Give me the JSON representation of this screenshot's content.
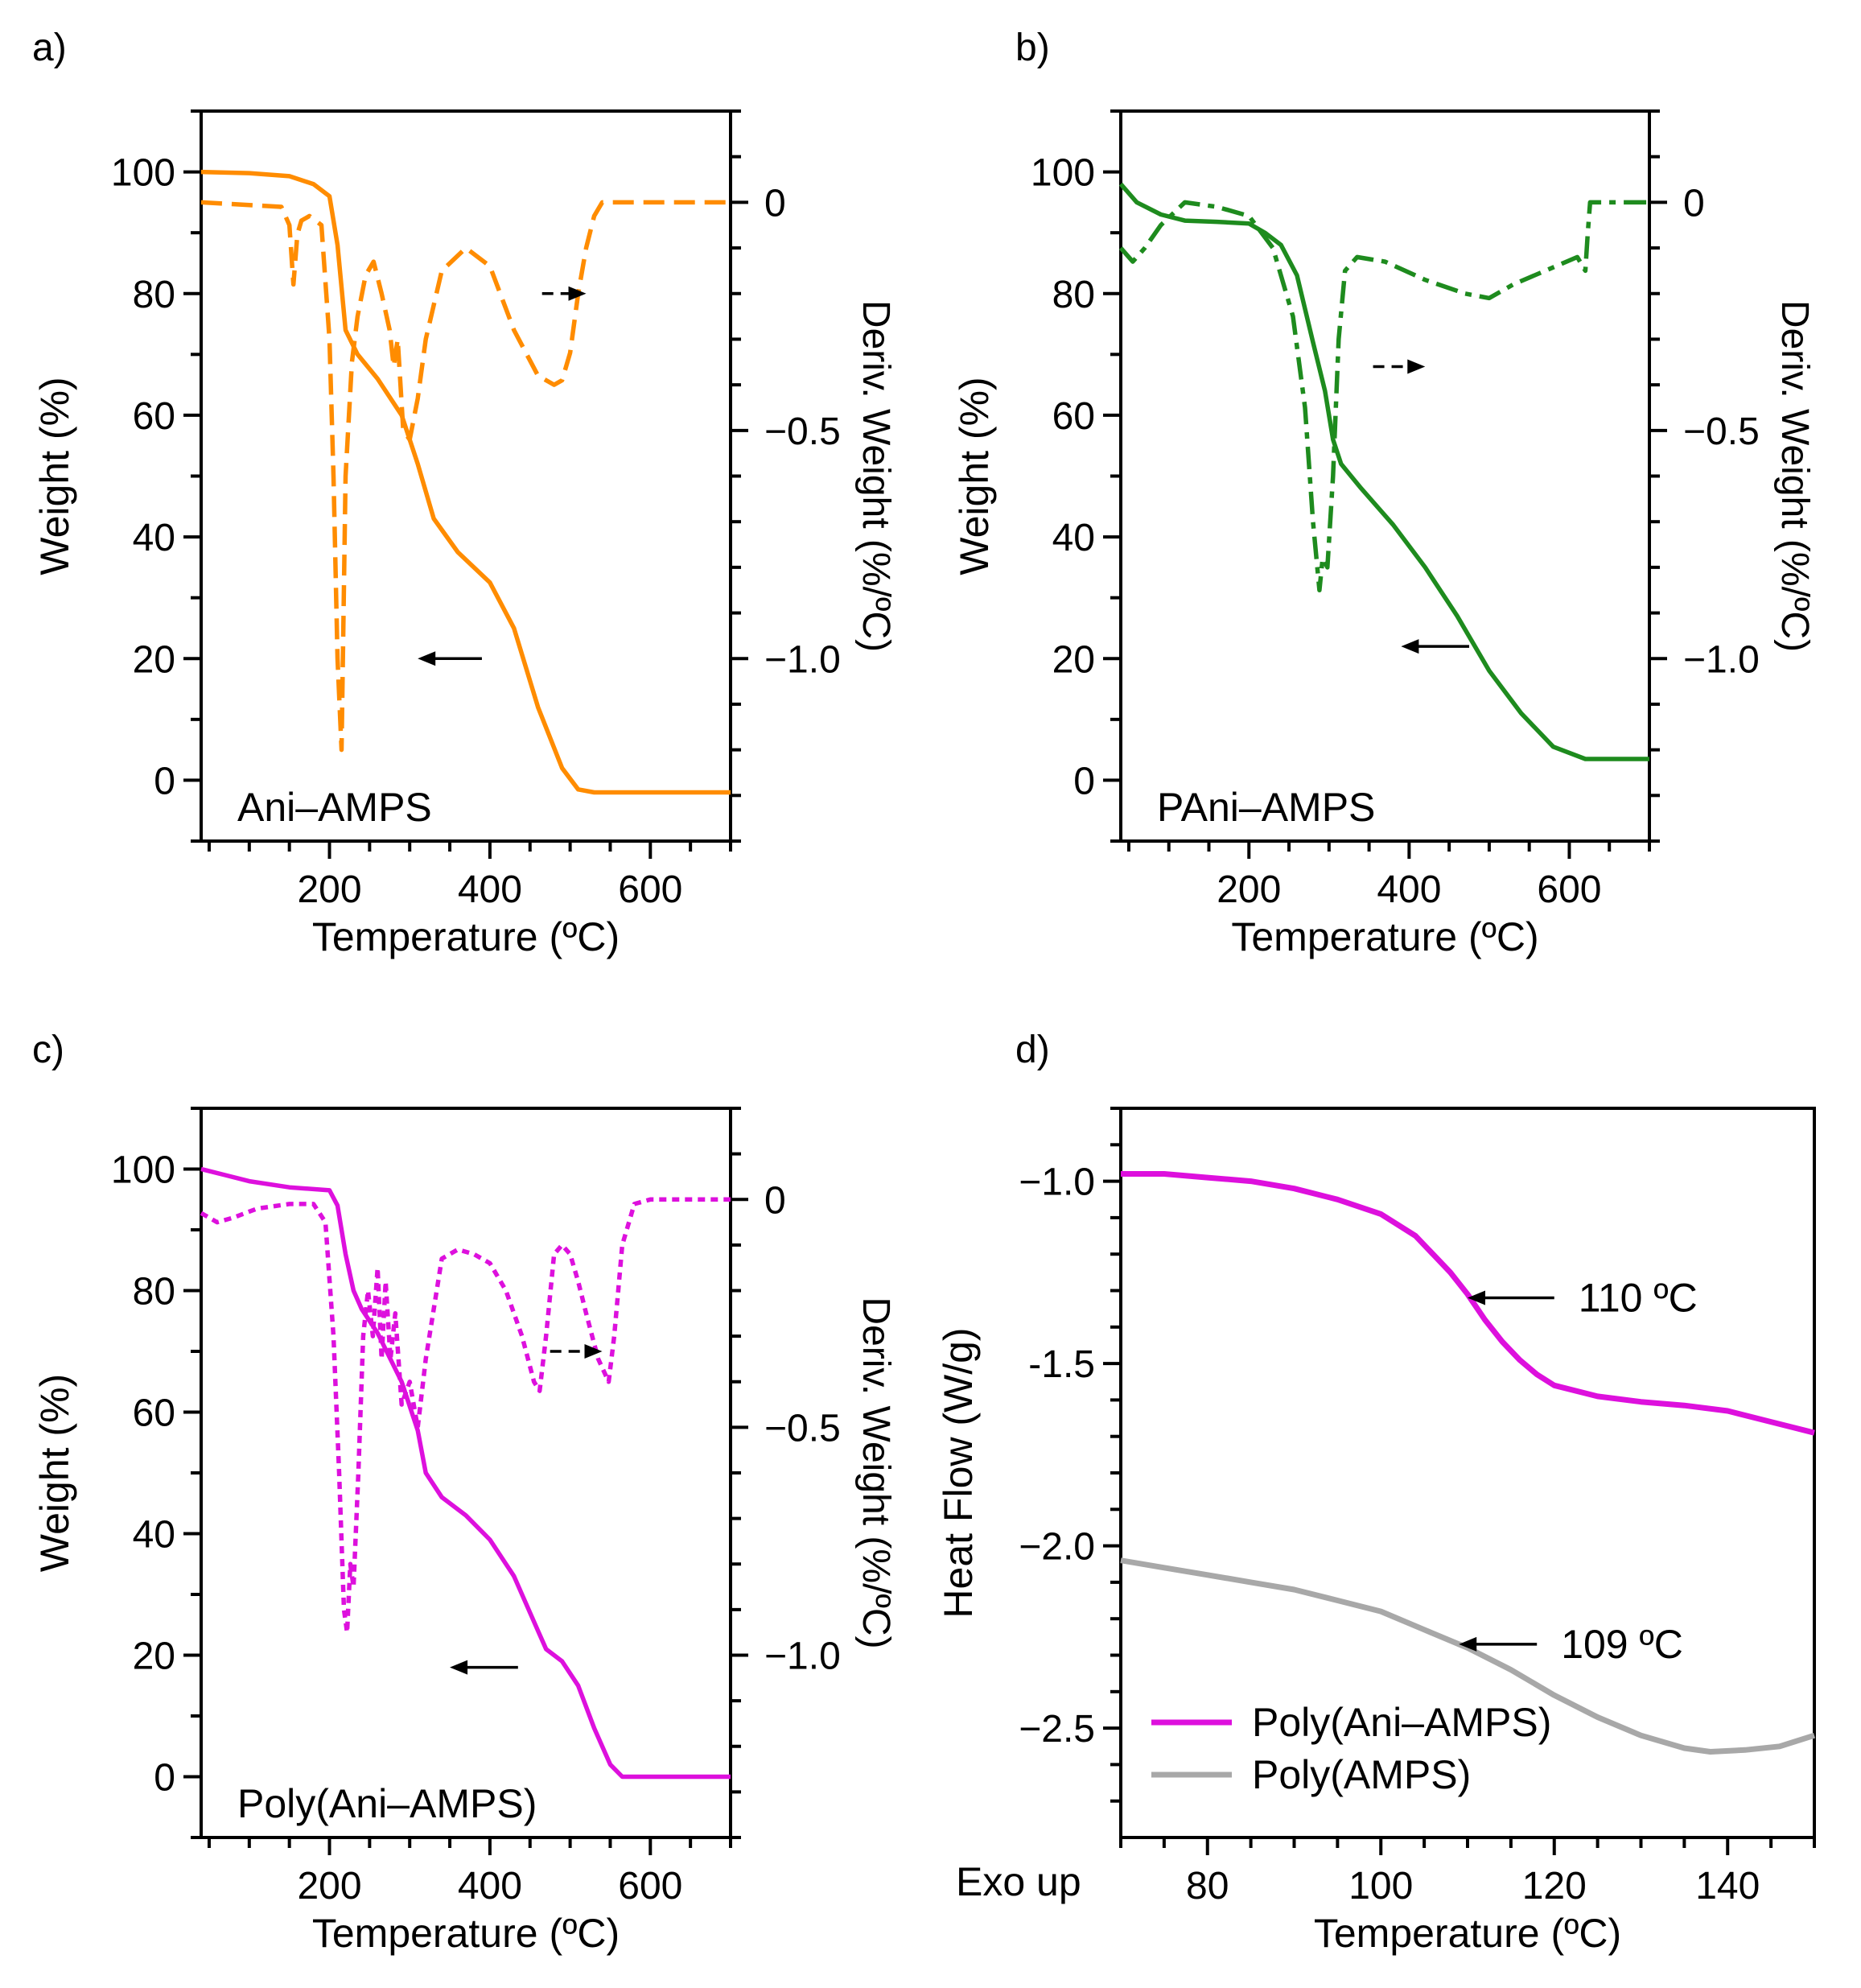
{
  "figure": {
    "panels": [
      "a)",
      "b)",
      "c)",
      "d)"
    ]
  },
  "chart_data": [
    {
      "panel": "a)",
      "type": "line",
      "color": "#FF8C00",
      "xlabel": "Temperature (ºC)",
      "ylabel": "Weight (%)",
      "y2label": "Deriv. Weight (%/ºC)",
      "xlim": [
        40,
        700
      ],
      "ylim": [
        -10,
        110
      ],
      "y2lim": [
        -1.4,
        0.2
      ],
      "xticks": [
        200,
        400,
        600
      ],
      "xtick_labels": [
        "200",
        "400",
        "600"
      ],
      "yticks": [
        0,
        20,
        40,
        60,
        80,
        100
      ],
      "ytick_labels": [
        "0",
        "20",
        "40",
        "60",
        "80",
        "100"
      ],
      "y2ticks": [
        0,
        -0.5,
        -1.0
      ],
      "y2tick_labels": [
        "0",
        "−0.5",
        "−1.0"
      ],
      "sample_label": "Ani–AMPS",
      "series": [
        {
          "name": "Weight",
          "axis": "left",
          "style": "solid",
          "x": [
            40,
            100,
            150,
            180,
            200,
            210,
            220,
            235,
            260,
            290,
            310,
            330,
            360,
            400,
            430,
            460,
            490,
            510,
            530,
            560,
            600,
            700
          ],
          "y": [
            100,
            99.8,
            99.3,
            98,
            96,
            88,
            74,
            70,
            66,
            60,
            52,
            43,
            37.5,
            32.5,
            25,
            12,
            2,
            -1.5,
            -2,
            -2,
            -2,
            -2
          ]
        },
        {
          "name": "Deriv. Weight",
          "axis": "right",
          "style": "dashed",
          "x": [
            40,
            140,
            150,
            155,
            160,
            165,
            175,
            190,
            200,
            205,
            210,
            215,
            220,
            228,
            235,
            245,
            255,
            265,
            275,
            280,
            285,
            292,
            300,
            310,
            320,
            340,
            370,
            400,
            430,
            460,
            480,
            490,
            500,
            510,
            520,
            530,
            540,
            600,
            700
          ],
          "y": [
            0,
            -0.01,
            -0.05,
            -0.18,
            -0.07,
            -0.04,
            -0.03,
            -0.05,
            -0.3,
            -0.6,
            -1.0,
            -1.2,
            -0.6,
            -0.35,
            -0.25,
            -0.16,
            -0.13,
            -0.2,
            -0.28,
            -0.36,
            -0.3,
            -0.5,
            -0.52,
            -0.43,
            -0.3,
            -0.15,
            -0.1,
            -0.14,
            -0.28,
            -0.38,
            -0.4,
            -0.39,
            -0.33,
            -0.2,
            -0.1,
            -0.03,
            0,
            0,
            0
          ]
        }
      ],
      "arrows": [
        {
          "from": [
            390,
            20
          ],
          "to": [
            310,
            20
          ],
          "style": "solid"
        },
        {
          "from": [
            465,
            80
          ],
          "to": [
            520,
            80
          ],
          "style": "dashed"
        }
      ]
    },
    {
      "panel": "b)",
      "type": "line",
      "color": "#1E8B1E",
      "xlabel": "Temperature (ºC)",
      "ylabel": "Weight (%)",
      "y2label": "Deriv. Weight (%/ºC)",
      "xlim": [
        40,
        700
      ],
      "ylim": [
        -10,
        110
      ],
      "y2lim": [
        -1.4,
        0.2
      ],
      "xticks": [
        200,
        400,
        600
      ],
      "xtick_labels": [
        "200",
        "400",
        "600"
      ],
      "yticks": [
        0,
        20,
        40,
        60,
        80,
        100
      ],
      "ytick_labels": [
        "0",
        "20",
        "40",
        "60",
        "80",
        "100"
      ],
      "y2ticks": [
        0,
        -0.5,
        -1.0
      ],
      "y2tick_labels": [
        "0",
        "−0.5",
        "−1.0"
      ],
      "sample_label": "PAni–AMPS",
      "series": [
        {
          "name": "Weight",
          "axis": "left",
          "style": "solid",
          "x": [
            40,
            60,
            90,
            120,
            160,
            200,
            220,
            240,
            260,
            280,
            295,
            305,
            315,
            340,
            380,
            420,
            460,
            500,
            540,
            580,
            620,
            625,
            700
          ],
          "y": [
            98,
            95,
            93,
            92,
            91.8,
            91.5,
            90,
            88,
            83,
            72,
            64,
            56,
            52,
            48,
            42,
            35,
            27,
            18,
            11,
            5.5,
            3.5,
            3.5,
            3.5
          ]
        },
        {
          "name": "Deriv. Weight",
          "axis": "right",
          "style": "dash-dot",
          "x": [
            40,
            55,
            70,
            90,
            120,
            160,
            200,
            230,
            255,
            270,
            280,
            288,
            292,
            298,
            305,
            312,
            320,
            335,
            370,
            420,
            470,
            500,
            530,
            570,
            610,
            620,
            623,
            626,
            700
          ],
          "y": [
            -0.1,
            -0.13,
            -0.1,
            -0.05,
            0,
            -0.01,
            -0.03,
            -0.1,
            -0.25,
            -0.45,
            -0.7,
            -0.85,
            -0.78,
            -0.8,
            -0.6,
            -0.3,
            -0.15,
            -0.12,
            -0.13,
            -0.17,
            -0.2,
            -0.21,
            -0.18,
            -0.15,
            -0.12,
            -0.15,
            -0.07,
            0,
            0
          ]
        }
      ],
      "arrows": [
        {
          "from": [
            475,
            22
          ],
          "to": [
            390,
            22
          ],
          "style": "solid"
        },
        {
          "from": [
            355,
            68
          ],
          "to": [
            420,
            68
          ],
          "style": "dashed"
        }
      ]
    },
    {
      "panel": "c)",
      "type": "line",
      "color": "#DD10DD",
      "xlabel": "Temperature (ºC)",
      "ylabel": "Weight (%)",
      "y2label": "Deriv. Weight (%/ºC)",
      "xlim": [
        40,
        700
      ],
      "ylim": [
        -10,
        110
      ],
      "y2lim": [
        -1.4,
        0.2
      ],
      "xticks": [
        200,
        400,
        600
      ],
      "xtick_labels": [
        "200",
        "400",
        "600"
      ],
      "yticks": [
        0,
        20,
        40,
        60,
        80,
        100
      ],
      "ytick_labels": [
        "0",
        "20",
        "40",
        "60",
        "80",
        "100"
      ],
      "y2ticks": [
        0,
        -0.5,
        -1.0
      ],
      "y2tick_labels": [
        "0",
        "−0.5",
        "−1.0"
      ],
      "sample_label": "Poly(Ani–AMPS)",
      "series": [
        {
          "name": "Weight",
          "axis": "left",
          "style": "solid",
          "x": [
            40,
            70,
            100,
            150,
            200,
            210,
            220,
            230,
            240,
            260,
            290,
            310,
            320,
            340,
            370,
            400,
            430,
            460,
            470,
            490,
            510,
            530,
            550,
            565,
            600,
            700
          ],
          "y": [
            100,
            99,
            98,
            97,
            96.5,
            94,
            86,
            80,
            77,
            73,
            65,
            57,
            50,
            46,
            43,
            39,
            33,
            24,
            21,
            19,
            15,
            8,
            2,
            0,
            0,
            0
          ]
        },
        {
          "name": "Deriv. Weight",
          "axis": "right",
          "style": "dotted",
          "x": [
            40,
            60,
            80,
            110,
            150,
            180,
            195,
            205,
            212,
            218,
            222,
            226,
            230,
            236,
            242,
            248,
            254,
            260,
            265,
            270,
            276,
            282,
            290,
            300,
            310,
            320,
            340,
            360,
            380,
            400,
            420,
            440,
            455,
            462,
            470,
            480,
            490,
            500,
            510,
            520,
            535,
            548,
            555,
            565,
            580,
            600,
            700
          ],
          "y": [
            -0.03,
            -0.05,
            -0.04,
            -0.02,
            -0.01,
            -0.01,
            -0.05,
            -0.3,
            -0.6,
            -0.9,
            -0.95,
            -0.8,
            -0.85,
            -0.6,
            -0.3,
            -0.2,
            -0.3,
            -0.15,
            -0.35,
            -0.18,
            -0.35,
            -0.25,
            -0.45,
            -0.4,
            -0.5,
            -0.35,
            -0.13,
            -0.11,
            -0.12,
            -0.14,
            -0.2,
            -0.3,
            -0.4,
            -0.42,
            -0.3,
            -0.12,
            -0.1,
            -0.12,
            -0.18,
            -0.25,
            -0.35,
            -0.4,
            -0.3,
            -0.1,
            -0.01,
            0,
            0
          ]
        }
      ],
      "arrows": [
        {
          "from": [
            435,
            18
          ],
          "to": [
            350,
            18
          ],
          "style": "solid"
        },
        {
          "from": [
            475,
            70
          ],
          "to": [
            540,
            70
          ],
          "style": "dashed"
        }
      ]
    },
    {
      "panel": "d)",
      "type": "line",
      "xlabel": "Temperature (ºC)",
      "ylabel": "Heat Flow (W/g)",
      "corner_label": "Exo up",
      "xlim": [
        70,
        150
      ],
      "ylim": [
        -2.8,
        -0.8
      ],
      "xticks": [
        80,
        100,
        120,
        140
      ],
      "xtick_labels": [
        "80",
        "100",
        "120",
        "140"
      ],
      "yticks": [
        -1.0,
        -1.5,
        -2.0,
        -2.5
      ],
      "ytick_labels": [
        "−1.0",
        "-1.5",
        "−2.0",
        "−2.5"
      ],
      "legend_position": "bottom-left",
      "series": [
        {
          "name": "Poly(Ani–AMPS)",
          "color": "#DD10DD",
          "x": [
            70,
            75,
            80,
            85,
            90,
            95,
            100,
            104,
            108,
            110,
            112,
            114,
            116,
            118,
            120,
            125,
            130,
            135,
            140,
            145,
            150
          ],
          "y": [
            -0.98,
            -0.98,
            -0.99,
            -1.0,
            -1.02,
            -1.05,
            -1.09,
            -1.15,
            -1.25,
            -1.31,
            -1.38,
            -1.44,
            -1.49,
            -1.53,
            -1.56,
            -1.59,
            -1.605,
            -1.615,
            -1.63,
            -1.66,
            -1.69
          ]
        },
        {
          "name": "Poly(AMPS)",
          "color": "#A8A8A8",
          "x": [
            70,
            75,
            80,
            85,
            90,
            95,
            100,
            105,
            110,
            115,
            120,
            125,
            130,
            135,
            138,
            142,
            146,
            150
          ],
          "y": [
            -2.04,
            -2.06,
            -2.08,
            -2.1,
            -2.12,
            -2.15,
            -2.18,
            -2.23,
            -2.28,
            -2.34,
            -2.41,
            -2.47,
            -2.52,
            -2.555,
            -2.565,
            -2.56,
            -2.55,
            -2.52
          ]
        }
      ],
      "annotations": [
        {
          "text": "110 ºC",
          "tip": [
            110,
            -1.32
          ],
          "tail": [
            120,
            -1.32
          ]
        },
        {
          "text": "109 ºC",
          "tip": [
            109,
            -2.27
          ],
          "tail": [
            118,
            -2.27
          ]
        }
      ]
    }
  ]
}
